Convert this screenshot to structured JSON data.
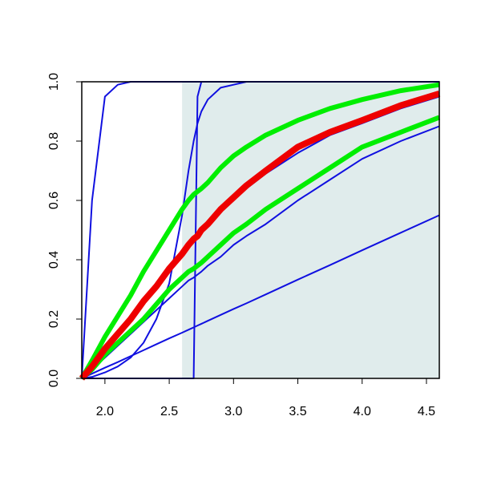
{
  "chart_data": {
    "type": "line",
    "x": [
      1.82,
      1.9,
      2.0,
      2.1,
      2.2,
      2.3,
      2.4,
      2.5,
      2.6,
      2.65,
      2.69,
      2.72,
      2.75,
      2.8,
      2.9,
      3.0,
      3.1,
      3.25,
      3.5,
      3.75,
      4.0,
      4.3,
      4.6
    ],
    "shaded_region": {
      "xlim": [
        2.6,
        4.6
      ],
      "color": "#e0ecec"
    },
    "series": [
      {
        "color": "#1010e0",
        "width": 2,
        "values": [
          0,
          0.6,
          0.95,
          0.99,
          1,
          1,
          1,
          1,
          1,
          1,
          1,
          1,
          1,
          1,
          1,
          1,
          1,
          1,
          1,
          1,
          1,
          1,
          1
        ]
      },
      {
        "color": "#1010e0",
        "width": 2,
        "values": [
          0,
          0,
          0,
          0,
          0,
          0,
          0,
          0,
          0,
          0,
          0,
          0.95,
          1,
          1,
          1,
          1,
          1,
          1,
          1,
          1,
          1,
          1,
          1
        ]
      },
      {
        "color": "#1010e0",
        "width": 2,
        "values": [
          0,
          0.005,
          0.02,
          0.04,
          0.07,
          0.12,
          0.2,
          0.32,
          0.55,
          0.7,
          0.8,
          0.86,
          0.9,
          0.94,
          0.98,
          0.99,
          1,
          1,
          1,
          1,
          1,
          1,
          1
        ]
      },
      {
        "color": "#1010e0",
        "width": 2,
        "values": [
          0,
          0.016,
          0.036,
          0.055,
          0.075,
          0.095,
          0.115,
          0.135,
          0.154,
          0.164,
          0.172,
          0.178,
          0.184,
          0.194,
          0.214,
          0.234,
          0.253,
          0.283,
          0.333,
          0.382,
          0.432,
          0.491,
          0.55
        ]
      },
      {
        "color": "#1010e0",
        "width": 2,
        "values": [
          0,
          0.04,
          0.1,
          0.15,
          0.2,
          0.26,
          0.31,
          0.37,
          0.42,
          0.45,
          0.47,
          0.48,
          0.5,
          0.52,
          0.56,
          0.6,
          0.64,
          0.69,
          0.76,
          0.82,
          0.86,
          0.91,
          0.95
        ]
      },
      {
        "color": "#1010e0",
        "width": 2,
        "values": [
          0,
          0.03,
          0.07,
          0.11,
          0.15,
          0.19,
          0.23,
          0.27,
          0.31,
          0.33,
          0.34,
          0.35,
          0.36,
          0.38,
          0.41,
          0.45,
          0.48,
          0.52,
          0.6,
          0.67,
          0.74,
          0.8,
          0.85
        ]
      },
      {
        "color": "#00ee00",
        "width": 6,
        "values": [
          0,
          0.06,
          0.14,
          0.21,
          0.28,
          0.36,
          0.43,
          0.5,
          0.57,
          0.6,
          0.62,
          0.63,
          0.64,
          0.66,
          0.71,
          0.75,
          0.78,
          0.82,
          0.87,
          0.91,
          0.94,
          0.97,
          0.99
        ]
      },
      {
        "color": "#00ee00",
        "width": 6,
        "values": [
          0,
          0.03,
          0.08,
          0.12,
          0.16,
          0.2,
          0.25,
          0.3,
          0.34,
          0.36,
          0.37,
          0.38,
          0.39,
          0.41,
          0.45,
          0.49,
          0.52,
          0.57,
          0.64,
          0.71,
          0.78,
          0.83,
          0.88
        ]
      },
      {
        "color": "#ee0000",
        "width": 8,
        "values": [
          0,
          0.04,
          0.1,
          0.15,
          0.2,
          0.26,
          0.31,
          0.37,
          0.42,
          0.45,
          0.47,
          0.48,
          0.5,
          0.52,
          0.57,
          0.61,
          0.65,
          0.7,
          0.78,
          0.83,
          0.87,
          0.92,
          0.96
        ]
      }
    ],
    "xlim": [
      1.82,
      4.6
    ],
    "ylim": [
      0,
      1
    ],
    "xticks": [
      {
        "value": 2,
        "label": "2.0"
      },
      2.5,
      {
        "value": 3,
        "label": "3.0"
      },
      3.5,
      {
        "value": 4,
        "label": "4.0"
      },
      4.5
    ],
    "yticks": [
      {
        "value": 0,
        "label": "0.0"
      },
      0.2,
      0.4,
      0.6,
      0.8,
      {
        "value": 1,
        "label": "1.0"
      }
    ]
  }
}
